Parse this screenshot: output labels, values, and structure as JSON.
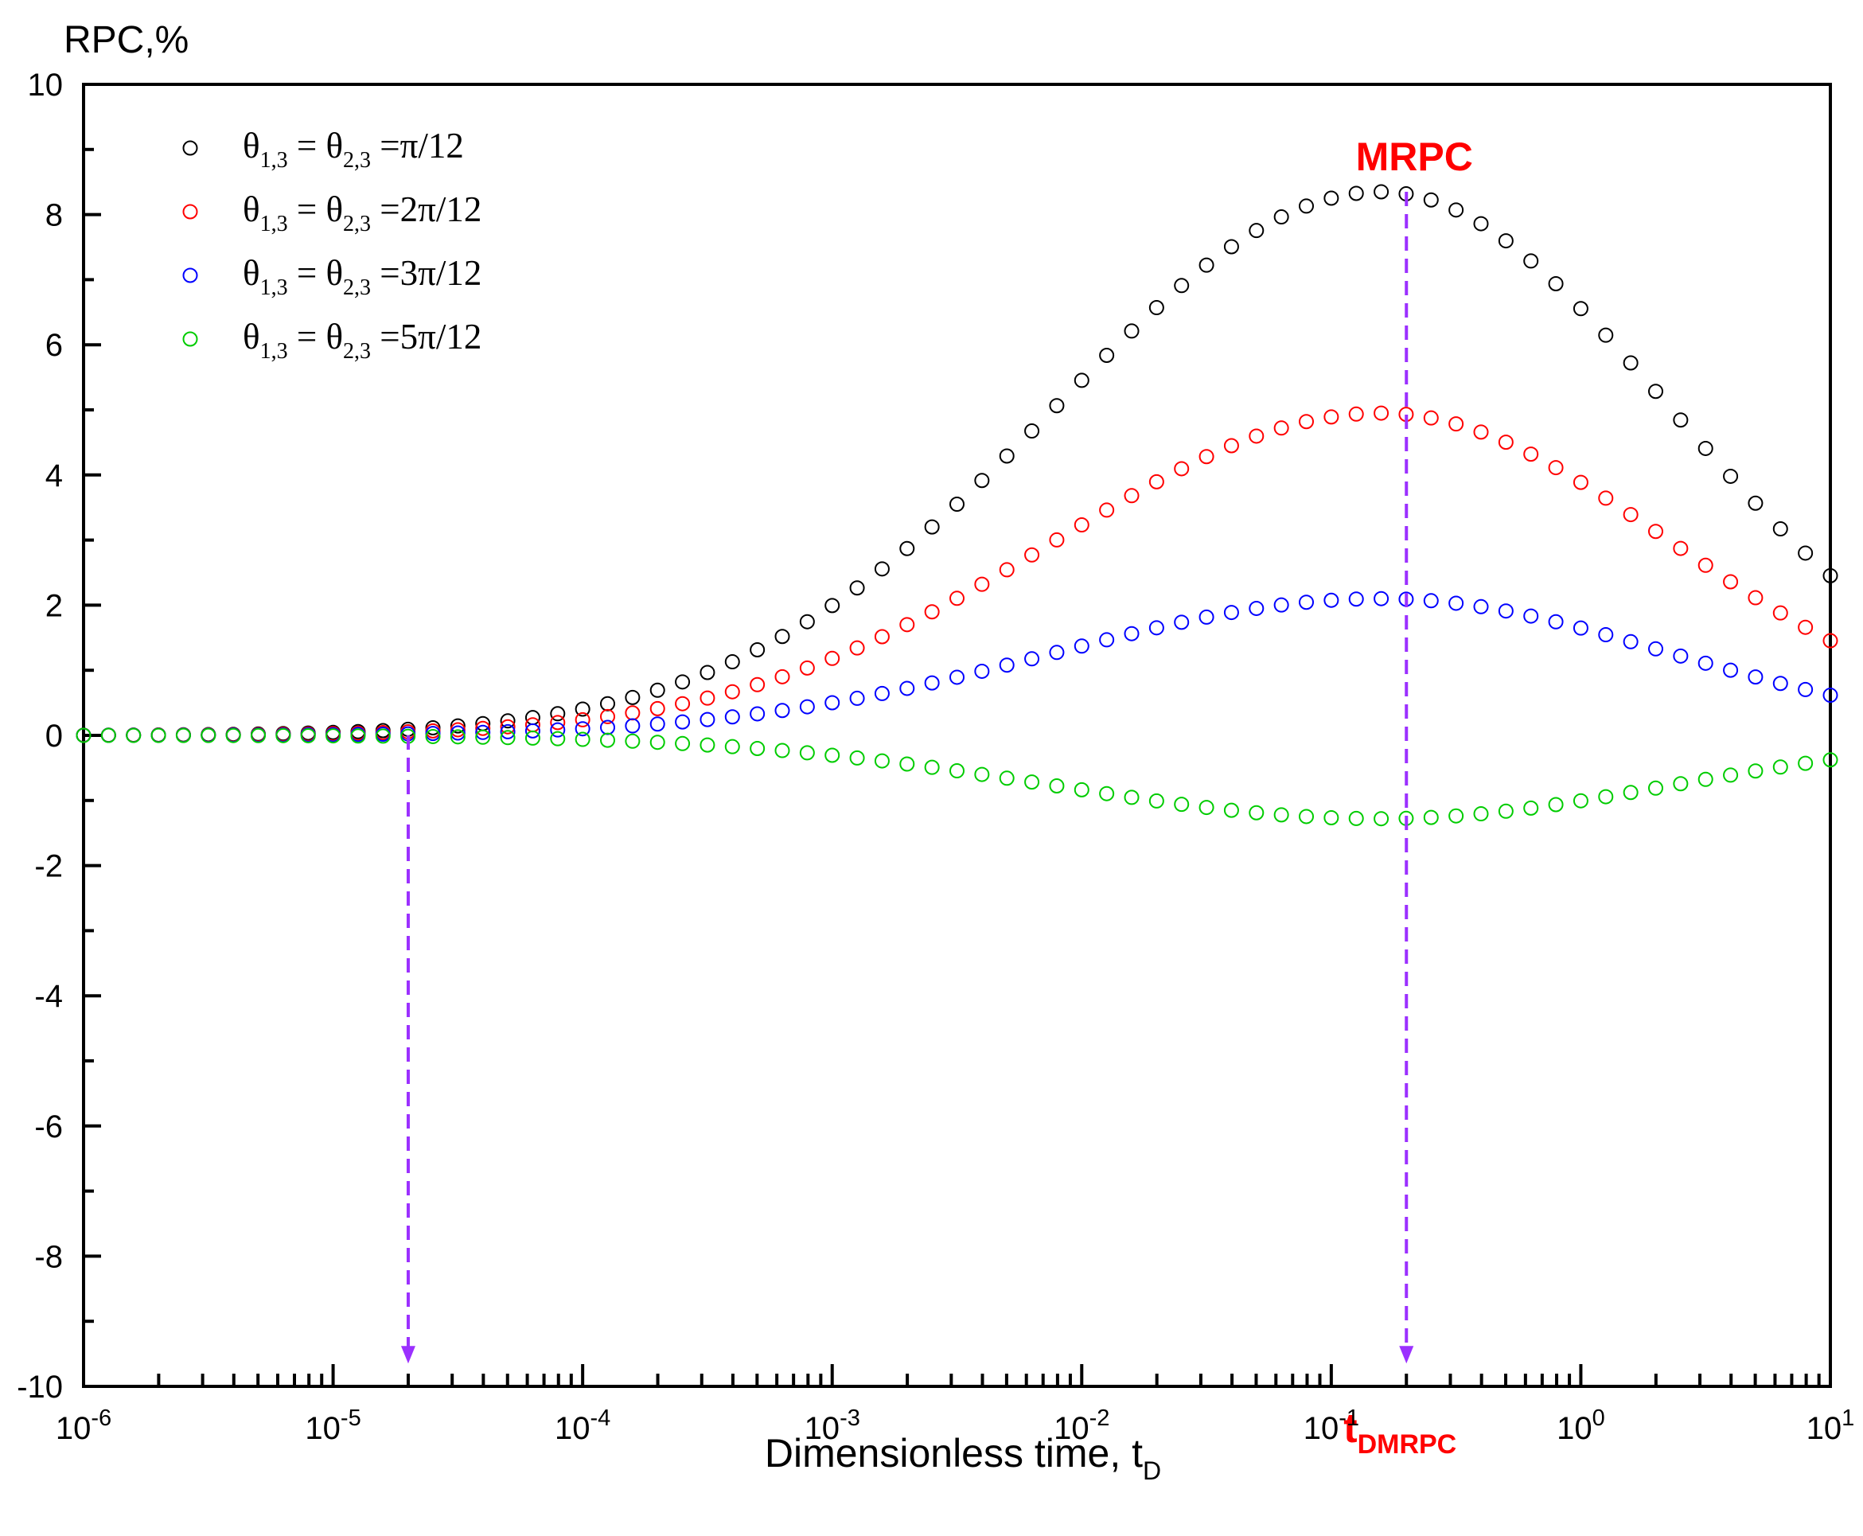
{
  "chart_data": {
    "type": "scatter",
    "title": "",
    "ylabel": "RPC,%",
    "xlabel_main": "Dimensionless time, t",
    "xlabel_sub": "D",
    "xscale": "log",
    "xlim": [
      1e-06,
      10
    ],
    "ylim": [
      -10,
      10
    ],
    "yticks": [
      10,
      8,
      6,
      4,
      2,
      0,
      -2,
      -4,
      -6,
      -8,
      -10
    ],
    "ytick_labels": [
      "10",
      "8",
      "6",
      "4",
      "2",
      "0",
      "-2",
      "-4",
      "-6",
      "-8",
      "-10"
    ],
    "xticks": [
      {
        "base": "10",
        "exp": "-6",
        "value": 1e-06
      },
      {
        "base": "10",
        "exp": "-5",
        "value": 1e-05
      },
      {
        "base": "10",
        "exp": "-4",
        "value": 0.0001
      },
      {
        "base": "10",
        "exp": "-3",
        "value": 0.001
      },
      {
        "base": "10",
        "exp": "-2",
        "value": 0.01
      },
      {
        "base": "10",
        "exp": "-1",
        "value": 0.1
      },
      {
        "base": "10",
        "exp": "0",
        "value": 1
      },
      {
        "base": "10",
        "exp": "1",
        "value": 10
      }
    ],
    "legend": {
      "position": "top-left",
      "prefix": "θ",
      "sub1": "1,3",
      "eq": " = θ",
      "sub2": "2,3"
    },
    "series": [
      {
        "name": "θ1,3 = θ2,3 =π/12",
        "label_suffix": " =π/12",
        "color": "#000000",
        "peak": 8.35,
        "center_log": -0.8,
        "rise_width": 1.3,
        "fall_width": 1.15
      },
      {
        "name": "θ1,3 = θ2,3 =2π/12",
        "label_suffix": " =2π/12",
        "color": "#ff0000",
        "peak": 4.95,
        "center_log": -0.8,
        "rise_width": 1.3,
        "fall_width": 1.15
      },
      {
        "name": "θ1,3 = θ2,3 =3π/12",
        "label_suffix": " =3π/12",
        "color": "#0000ff",
        "peak": 2.1,
        "center_log": -0.8,
        "rise_width": 1.3,
        "fall_width": 1.15
      },
      {
        "name": "θ1,3 = θ2,3 =5π/12",
        "label_suffix": " =5π/12",
        "color": "#00cc00",
        "peak": -1.28,
        "center_log": -0.8,
        "rise_width": 1.3,
        "fall_width": 1.15
      }
    ],
    "n_points_per_decade": 10,
    "annotations": {
      "mrpc_label": "MRPC",
      "mrpc_x": 0.2,
      "mrpc_color": "#ff0000",
      "t_label": "t",
      "t_sub": "DMRPC",
      "t_color": "#ff0000",
      "arrow_color": "#9b30ff",
      "arrow1_x": 2e-05,
      "arrow1_y_top": 0,
      "arrow2_x": 0.2,
      "arrow2_y_top": 8.35,
      "arrow_y_bottom": -9.6
    }
  }
}
